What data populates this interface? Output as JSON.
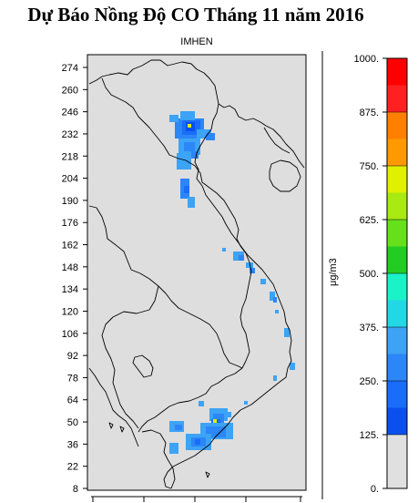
{
  "title": "Dự Báo Nồng Độ CO Tháng 11 năm 2016",
  "subtitle": "IMHEN",
  "y_axis": {
    "ticks": [
      "274",
      "260",
      "246",
      "232",
      "218",
      "204",
      "190",
      "176",
      "162",
      "148",
      "134",
      "120",
      "106",
      "92",
      "78",
      "64",
      "50",
      "36",
      "22",
      "8"
    ]
  },
  "colorbar": {
    "unit": "μg/m3",
    "labels": [
      "1000.",
      "875.",
      "750.",
      "625.",
      "500.",
      "375.",
      "250.",
      "125.",
      "0."
    ],
    "bands": [
      {
        "from": 0,
        "to": 125,
        "color": "#e0e0e0"
      },
      {
        "from": 125,
        "to": 187.5,
        "color": "#0a50ee"
      },
      {
        "from": 187.5,
        "to": 250,
        "color": "#1a6df8"
      },
      {
        "from": 250,
        "to": 312.5,
        "color": "#2b86f7"
      },
      {
        "from": 312.5,
        "to": 375,
        "color": "#3da3f5"
      },
      {
        "from": 375,
        "to": 437.5,
        "color": "#22d8e6"
      },
      {
        "from": 437.5,
        "to": 500,
        "color": "#1af2c8"
      },
      {
        "from": 500,
        "to": 562.5,
        "color": "#22cc22"
      },
      {
        "from": 562.5,
        "to": 625,
        "color": "#66e01a"
      },
      {
        "from": 625,
        "to": 687.5,
        "color": "#a8ea12"
      },
      {
        "from": 687.5,
        "to": 750,
        "color": "#e0f000"
      },
      {
        "from": 750,
        "to": 812.5,
        "color": "#ff9900"
      },
      {
        "from": 812.5,
        "to": 875,
        "color": "#ff8000"
      },
      {
        "from": 875,
        "to": 937.5,
        "color": "#ff2020"
      },
      {
        "from": 937.5,
        "to": 1000,
        "color": "#ff0000"
      }
    ]
  },
  "map": {
    "background_color": "#dedede",
    "boundary_color": "#000000"
  }
}
